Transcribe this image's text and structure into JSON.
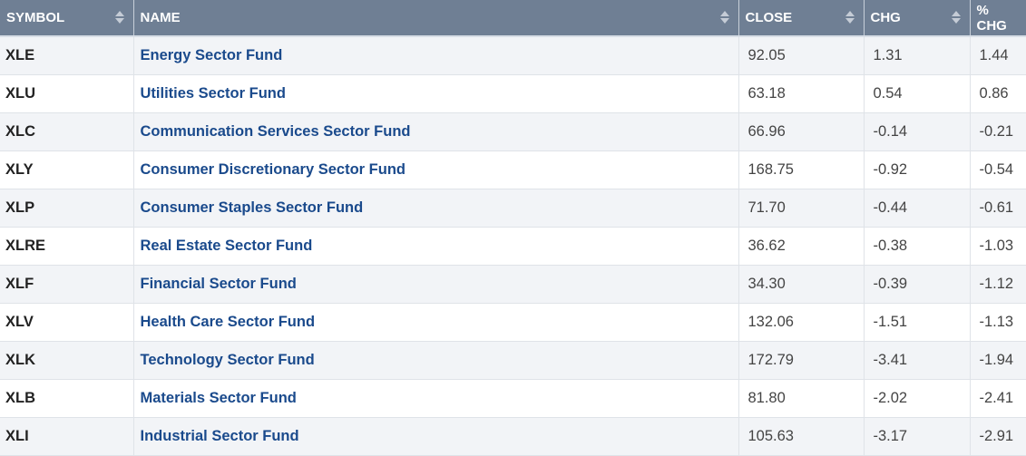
{
  "header": {
    "symbol": "SYMBOL",
    "name": "NAME",
    "close": "CLOSE",
    "chg": "CHG",
    "pct_chg": "% CHG"
  },
  "rows": [
    {
      "symbol": "XLE",
      "name": "Energy Sector Fund",
      "close": "92.05",
      "chg": "1.31",
      "pct_chg": "1.44"
    },
    {
      "symbol": "XLU",
      "name": "Utilities Sector Fund",
      "close": "63.18",
      "chg": "0.54",
      "pct_chg": "0.86"
    },
    {
      "symbol": "XLC",
      "name": "Communication Services Sector Fund",
      "close": "66.96",
      "chg": "-0.14",
      "pct_chg": "-0.21"
    },
    {
      "symbol": "XLY",
      "name": "Consumer Discretionary Sector Fund",
      "close": "168.75",
      "chg": "-0.92",
      "pct_chg": "-0.54"
    },
    {
      "symbol": "XLP",
      "name": "Consumer Staples Sector Fund",
      "close": "71.70",
      "chg": "-0.44",
      "pct_chg": "-0.61"
    },
    {
      "symbol": "XLRE",
      "name": "Real Estate Sector Fund",
      "close": "36.62",
      "chg": "-0.38",
      "pct_chg": "-1.03"
    },
    {
      "symbol": "XLF",
      "name": "Financial Sector Fund",
      "close": "34.30",
      "chg": "-0.39",
      "pct_chg": "-1.12"
    },
    {
      "symbol": "XLV",
      "name": "Health Care Sector Fund",
      "close": "132.06",
      "chg": "-1.51",
      "pct_chg": "-1.13"
    },
    {
      "symbol": "XLK",
      "name": "Technology Sector Fund",
      "close": "172.79",
      "chg": "-3.41",
      "pct_chg": "-1.94"
    },
    {
      "symbol": "XLB",
      "name": "Materials Sector Fund",
      "close": "81.80",
      "chg": "-2.02",
      "pct_chg": "-2.41"
    },
    {
      "symbol": "XLI",
      "name": "Industrial Sector Fund",
      "close": "105.63",
      "chg": "-3.17",
      "pct_chg": "-2.91"
    }
  ]
}
